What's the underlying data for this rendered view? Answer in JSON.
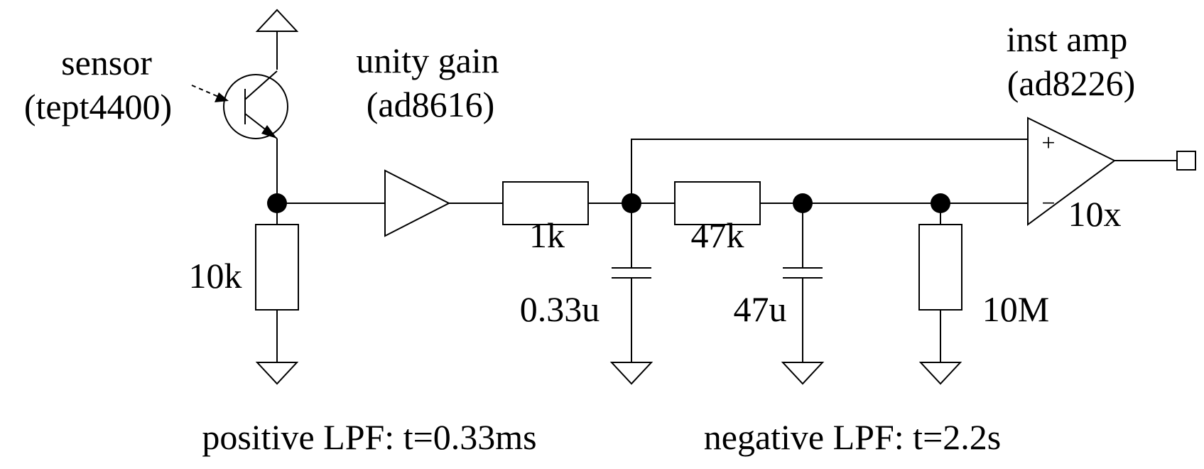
{
  "diagram": {
    "type": "circuit-schematic",
    "labels": {
      "sensor_line1": "sensor",
      "sensor_line2": "(tept4400)",
      "buffer_line1": "unity gain",
      "buffer_line2": "(ad8616)",
      "inamp_line1": "inst amp",
      "inamp_line2": "(ad8226)",
      "inamp_gain": "10x",
      "plus_sign": "+",
      "minus_sign": "−",
      "r_load": "10k",
      "r_series_1": "1k",
      "c_filter_1": "0.33u",
      "r_series_2": "47k",
      "c_filter_2": "47u",
      "r_bleed": "10M",
      "caption_positive": "positive LPF: t=0.33ms",
      "caption_negative": "negative LPF: t=2.2s"
    }
  }
}
